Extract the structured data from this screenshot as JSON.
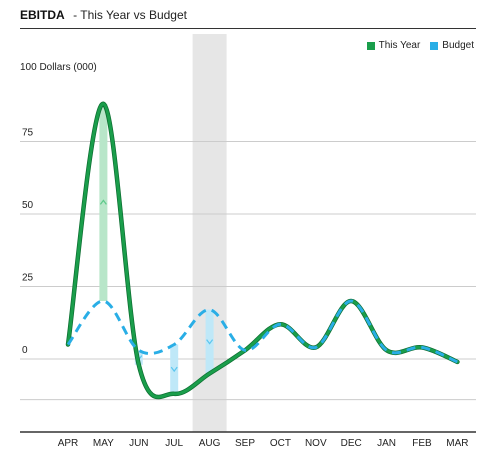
{
  "header": {
    "title": "EBITDA",
    "subtitle": "- This Year vs Budget"
  },
  "legend": [
    {
      "label": "This Year",
      "color": "#1a9e4b"
    },
    {
      "label": "Budget",
      "color": "#29aee6"
    }
  ],
  "unit_label": "100 Dollars (000)",
  "chart_data": {
    "type": "line",
    "categories": [
      "APR",
      "MAY",
      "JUN",
      "JUL",
      "AUG",
      "SEP",
      "OCT",
      "NOV",
      "DEC",
      "JAN",
      "FEB",
      "MAR"
    ],
    "series": [
      {
        "name": "This Year",
        "values": [
          5,
          88,
          -2,
          -12,
          -5,
          3,
          12,
          4,
          20,
          3,
          4,
          -1
        ]
      },
      {
        "name": "Budget",
        "values": [
          5,
          20,
          3,
          5,
          17,
          3,
          12,
          4,
          20,
          3,
          4,
          -1
        ]
      }
    ],
    "y_ticks": [
      0,
      25,
      50,
      75
    ],
    "ylim": [
      -25,
      100
    ],
    "highlight_category": "AUG",
    "colors": {
      "this_year": "#1a9e4b",
      "budget": "#29aee6",
      "variance_up": "#b8e6c9",
      "variance_down": "#bfe8f8",
      "highlight": "#e6e6e6",
      "grid": "#cccccc"
    }
  }
}
